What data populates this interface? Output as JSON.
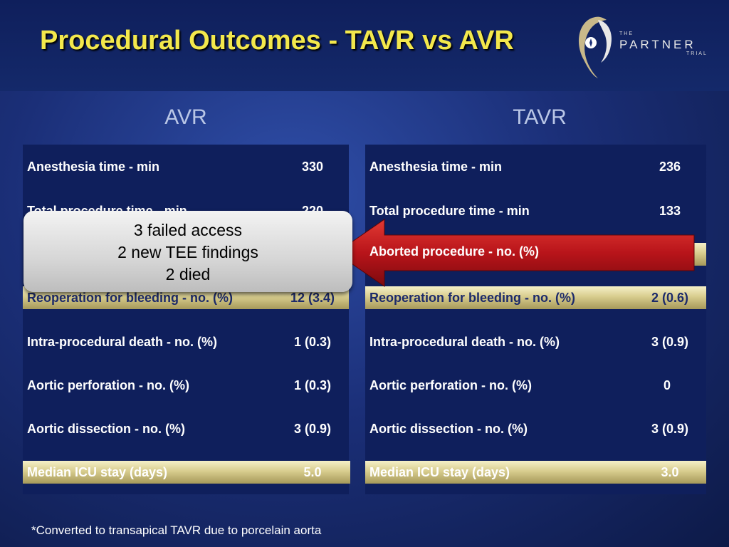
{
  "title": "Procedural Outcomes - TAVR vs AVR",
  "logo": {
    "line1": "THE",
    "line2": "PARTNER",
    "line3": "TRIAL"
  },
  "avr": {
    "heading": "AVR",
    "rows": [
      {
        "label": "Anesthesia time - min",
        "value": "330"
      },
      {
        "label": "Total procedure time - min",
        "value": "220"
      },
      {
        "label": "Reoperation for bleeding - no. (%)",
        "value": "12 (3.4)"
      },
      {
        "label": "Intra-procedural death  - no. (%)",
        "value": "1 (0.3)"
      },
      {
        "label": "Aortic perforation - no. (%)",
        "value": "1 (0.3)"
      },
      {
        "label": "Aortic dissection - no. (%)",
        "value": "3 (0.9)"
      },
      {
        "label": "Median ICU stay (days)",
        "value": "5.0"
      }
    ]
  },
  "tavr": {
    "heading": "TAVR",
    "rows": [
      {
        "label": "Anesthesia time - min",
        "value": "236"
      },
      {
        "label": "Total procedure time - min",
        "value": "133"
      },
      {
        "label": "Aborted procedure - no. (%)",
        "value": ""
      },
      {
        "label": "Reoperation for bleeding - no. (%)",
        "value": "2 (0.6)"
      },
      {
        "label": "Intra-procedural death  - no. (%)",
        "value": "3 (0.9)"
      },
      {
        "label": "Aortic perforation - no. (%)",
        "value": "0"
      },
      {
        "label": "Aortic dissection - no. (%)",
        "value": "3 (0.9)"
      },
      {
        "label": "Median ICU stay (days)",
        "value": "3.0"
      }
    ]
  },
  "callout": {
    "line1": "3 failed access",
    "line2": "2 new TEE findings",
    "line3": "2 died"
  },
  "footnote": "*Converted to transapical TAVR due to porcelain aorta",
  "colors": {
    "title": "#f3e84c",
    "highlight_row": "#d8cd8e",
    "arrow": "#b8141a",
    "panel": "#0f1f5c"
  }
}
